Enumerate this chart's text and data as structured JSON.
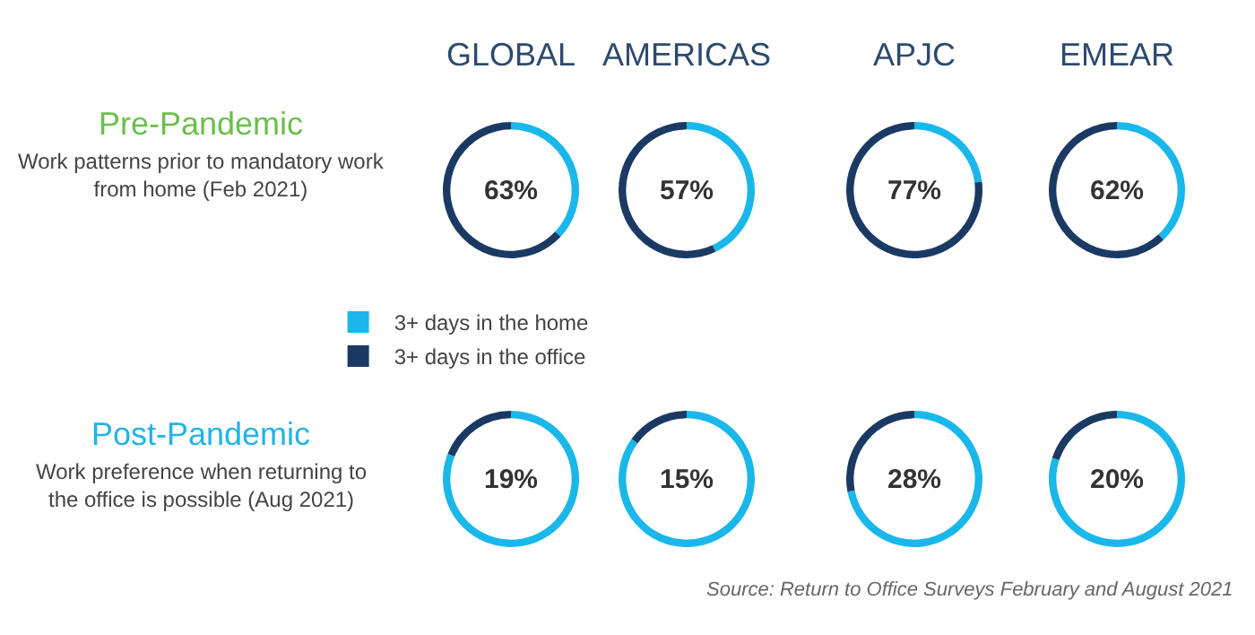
{
  "chart_data": [
    {
      "type": "donut",
      "title": "GLOBAL",
      "categories": [
        "3+ days in the home",
        "3+ days in the office"
      ],
      "values": [
        37,
        63
      ],
      "colors": [
        "#1ab7ea",
        "#1b3a63"
      ],
      "legend": "bottom",
      "annotations": [
        "63%",
        "Pre-Pandemic",
        "Work patterns prior to mandatory work\nfrom home (Feb 2021)"
      ]
    },
    {
      "type": "donut",
      "title": "AMERICAS",
      "categories": [
        null,
        null
      ],
      "values": [
        43,
        57
      ],
      "colors": [
        "#1ab7ea",
        "#1b3a63"
      ],
      "annotations": [
        "57%"
      ]
    },
    {
      "type": "donut",
      "title": "APJC",
      "categories": [
        null,
        null
      ],
      "values": [
        23,
        77
      ],
      "colors": [
        "#1ab7ea",
        "#1b3a63"
      ],
      "annotations": [
        "77%"
      ]
    },
    {
      "type": "donut",
      "title": "EMEAR",
      "categories": [
        null,
        null
      ],
      "values": [
        38,
        62
      ],
      "colors": [
        "#1ab7ea",
        "#1b3a63"
      ],
      "annotations": [
        "62%"
      ]
    },
    {
      "type": "donut",
      "categories": [
        null,
        null
      ],
      "values": [
        81,
        19
      ],
      "colors": [
        "#1ab7ea",
        "#1b3a63"
      ],
      "annotations": [
        "19%",
        "Post-Pandemic",
        "Work preference when returning to\nthe office is possible (Aug 2021)"
      ]
    },
    {
      "type": "donut",
      "categories": [
        null,
        null
      ],
      "values": [
        85,
        15
      ],
      "colors": [
        "#1ab7ea",
        "#1b3a63"
      ],
      "annotations": [
        "15%"
      ]
    },
    {
      "type": "donut",
      "categories": [
        null,
        null
      ],
      "values": [
        72,
        28
      ],
      "colors": [
        "#1ab7ea",
        "#1b3a63"
      ],
      "annotations": [
        "28%"
      ]
    },
    {
      "type": "donut",
      "categories": [
        null,
        null
      ],
      "values": [
        80,
        20
      ],
      "colors": [
        "#1ab7ea",
        "#1b3a63"
      ],
      "annotations": [
        "20%",
        "Source: Return to Office Surveys February and August 2021"
      ]
    }
  ]
}
